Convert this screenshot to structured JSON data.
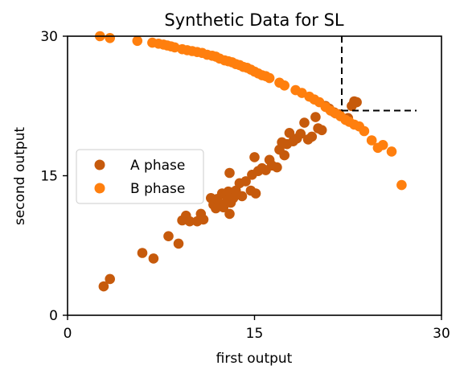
{
  "chart_data": {
    "type": "scatter",
    "title": "Synthetic Data for SL",
    "xlabel": "first output",
    "ylabel": "second output",
    "xlim": [
      0,
      30
    ],
    "ylim": [
      0,
      30
    ],
    "xticks": [
      0,
      15,
      30
    ],
    "yticks": [
      0,
      15,
      30
    ],
    "xtick_labels": [
      "0",
      "15",
      "30"
    ],
    "ytick_labels": [
      "0",
      "15",
      "30"
    ],
    "grid": false,
    "legend_position": "center-left",
    "threshold_lines": {
      "x": 22,
      "y": 22,
      "dashed": true,
      "color": "#000000"
    },
    "series": [
      {
        "name": "A phase",
        "color": "#c65a0c",
        "points": [
          [
            2.9,
            3.1
          ],
          [
            3.4,
            3.9
          ],
          [
            6.0,
            6.7
          ],
          [
            6.9,
            6.1
          ],
          [
            8.1,
            8.5
          ],
          [
            8.9,
            7.7
          ],
          [
            9.2,
            10.2
          ],
          [
            9.5,
            10.7
          ],
          [
            9.8,
            10.1
          ],
          [
            10.4,
            10.1
          ],
          [
            10.7,
            10.9
          ],
          [
            10.9,
            10.3
          ],
          [
            11.5,
            12.6
          ],
          [
            11.7,
            11.9
          ],
          [
            11.9,
            11.5
          ],
          [
            12.0,
            12.5
          ],
          [
            12.2,
            12.0
          ],
          [
            12.4,
            13.1
          ],
          [
            12.5,
            11.6
          ],
          [
            12.7,
            12.9
          ],
          [
            12.8,
            12.3
          ],
          [
            12.9,
            13.3
          ],
          [
            13.0,
            15.3
          ],
          [
            13.0,
            10.9
          ],
          [
            13.1,
            12.1
          ],
          [
            13.3,
            12.6
          ],
          [
            13.5,
            13.4
          ],
          [
            13.8,
            14.2
          ],
          [
            14.0,
            12.8
          ],
          [
            14.3,
            14.4
          ],
          [
            14.7,
            13.4
          ],
          [
            14.8,
            15.1
          ],
          [
            15.0,
            17.0
          ],
          [
            15.1,
            13.1
          ],
          [
            15.3,
            15.5
          ],
          [
            15.6,
            15.8
          ],
          [
            15.9,
            15.6
          ],
          [
            16.2,
            16.7
          ],
          [
            16.4,
            16.1
          ],
          [
            16.8,
            15.9
          ],
          [
            17.0,
            17.8
          ],
          [
            17.2,
            18.6
          ],
          [
            17.4,
            17.2
          ],
          [
            17.6,
            18.4
          ],
          [
            17.8,
            19.6
          ],
          [
            18.1,
            18.7
          ],
          [
            18.4,
            19.0
          ],
          [
            18.7,
            19.5
          ],
          [
            19.0,
            20.7
          ],
          [
            19.3,
            18.9
          ],
          [
            19.6,
            19.2
          ],
          [
            19.9,
            21.3
          ],
          [
            20.1,
            20.1
          ],
          [
            20.4,
            19.9
          ],
          [
            20.7,
            22.5
          ],
          [
            21.0,
            22.2
          ],
          [
            21.4,
            21.8
          ],
          [
            21.8,
            21.6
          ],
          [
            22.5,
            21.2
          ],
          [
            22.8,
            22.5
          ],
          [
            23.0,
            23.0
          ],
          [
            23.2,
            22.9
          ]
        ]
      },
      {
        "name": "B phase",
        "color": "#ff7f0e",
        "points": [
          [
            2.6,
            30.0
          ],
          [
            3.4,
            29.8
          ],
          [
            5.6,
            29.5
          ],
          [
            6.8,
            29.3
          ],
          [
            7.3,
            29.2
          ],
          [
            7.7,
            29.1
          ],
          [
            8.0,
            29.0
          ],
          [
            8.3,
            28.9
          ],
          [
            8.6,
            28.8
          ],
          [
            9.2,
            28.6
          ],
          [
            9.6,
            28.5
          ],
          [
            10.0,
            28.4
          ],
          [
            10.4,
            28.3
          ],
          [
            10.8,
            28.2
          ],
          [
            11.2,
            28.0
          ],
          [
            11.6,
            27.9
          ],
          [
            11.9,
            27.8
          ],
          [
            12.2,
            27.6
          ],
          [
            12.6,
            27.4
          ],
          [
            12.9,
            27.3
          ],
          [
            13.2,
            27.2
          ],
          [
            13.5,
            27.0
          ],
          [
            13.8,
            26.9
          ],
          [
            14.1,
            26.7
          ],
          [
            14.4,
            26.6
          ],
          [
            14.7,
            26.4
          ],
          [
            15.0,
            26.2
          ],
          [
            15.3,
            26.0
          ],
          [
            15.6,
            25.8
          ],
          [
            15.9,
            25.7
          ],
          [
            16.2,
            25.5
          ],
          [
            17.0,
            25.0
          ],
          [
            17.4,
            24.7
          ],
          [
            18.3,
            24.2
          ],
          [
            18.8,
            23.9
          ],
          [
            19.4,
            23.5
          ],
          [
            19.8,
            23.2
          ],
          [
            20.2,
            22.9
          ],
          [
            20.7,
            22.4
          ],
          [
            21.1,
            22.0
          ],
          [
            21.5,
            21.7
          ],
          [
            21.9,
            21.4
          ],
          [
            22.3,
            21.0
          ],
          [
            22.6,
            20.8
          ],
          [
            23.0,
            20.5
          ],
          [
            23.4,
            20.3
          ],
          [
            23.8,
            19.8
          ],
          [
            24.4,
            18.8
          ],
          [
            25.3,
            18.3
          ],
          [
            26.0,
            17.6
          ],
          [
            24.9,
            18.0
          ],
          [
            26.8,
            14.0
          ]
        ]
      }
    ]
  }
}
